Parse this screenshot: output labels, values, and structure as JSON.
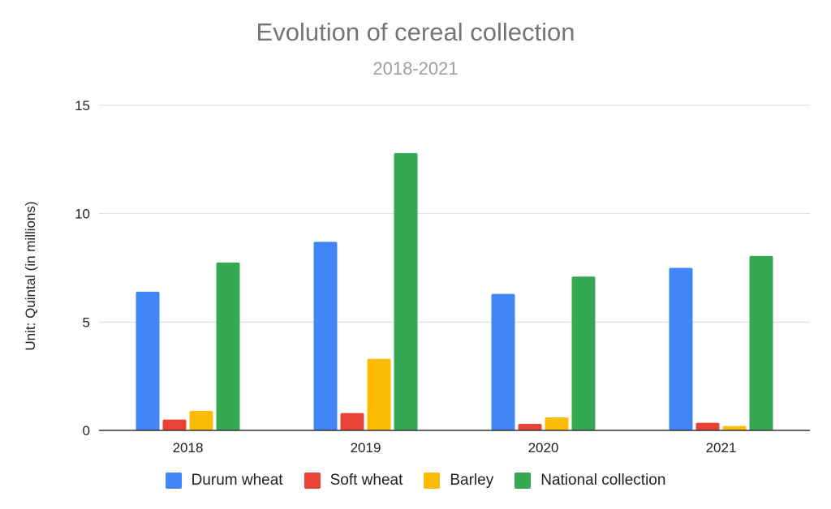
{
  "chart_data": {
    "type": "bar",
    "title": "Evolution of cereal collection",
    "subtitle": "2018-2021",
    "xlabel": "",
    "ylabel": "Unit: Quintal (in millions)",
    "ylim": [
      0,
      15
    ],
    "yticks": [
      0,
      5,
      10,
      15
    ],
    "grid": true,
    "legend_position": "bottom",
    "categories": [
      "2018",
      "2019",
      "2020",
      "2021"
    ],
    "series": [
      {
        "name": "Durum wheat",
        "color": "#4285F4",
        "values": [
          6.4,
          8.7,
          6.3,
          7.5
        ]
      },
      {
        "name": "Soft wheat",
        "color": "#EA4335",
        "values": [
          0.5,
          0.8,
          0.3,
          0.35
        ]
      },
      {
        "name": "Barley",
        "color": "#FBBC04",
        "values": [
          0.9,
          3.3,
          0.6,
          0.2
        ]
      },
      {
        "name": "National collection",
        "color": "#34A853",
        "values": [
          7.75,
          12.8,
          7.1,
          8.05
        ]
      }
    ]
  }
}
